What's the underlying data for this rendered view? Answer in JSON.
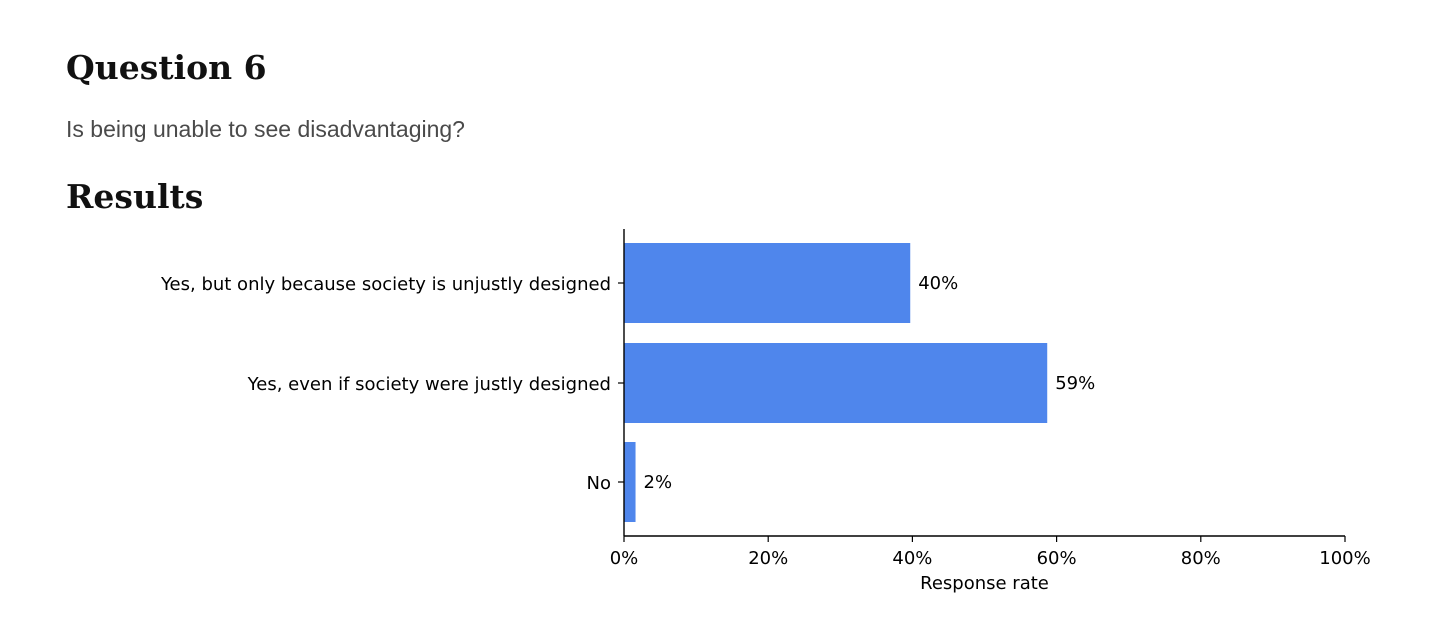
{
  "heading": "Question 6",
  "question_text": "Is being unable to see disadvantaging?",
  "results_heading": "Results",
  "chart_data": {
    "type": "bar",
    "orientation": "horizontal",
    "categories": [
      "Yes, but only because society is unjustly designed",
      "Yes, even if society were justly designed",
      "No"
    ],
    "values": [
      39.7,
      58.7,
      1.6
    ],
    "value_labels": [
      "40%",
      "59%",
      "2%"
    ],
    "xlabel": "Response rate",
    "xlim": [
      0,
      100
    ],
    "xticks": [
      0,
      20,
      40,
      60,
      80,
      100
    ],
    "xtick_labels": [
      "0%",
      "20%",
      "40%",
      "60%",
      "80%",
      "100%"
    ],
    "bar_color": "#4f86ec",
    "grid": false,
    "legend": "none"
  }
}
